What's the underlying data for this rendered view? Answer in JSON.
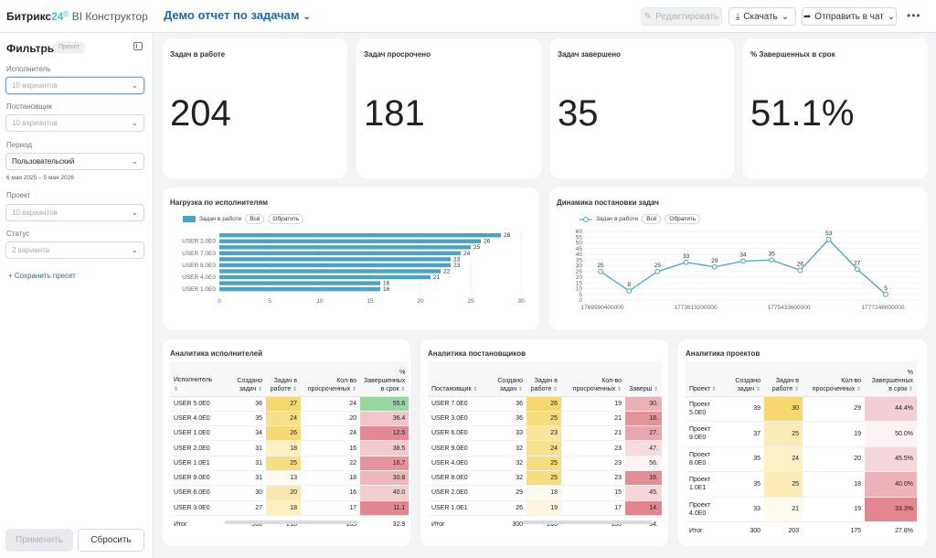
{
  "header": {
    "brand_name": "Битрикс",
    "brand_num": "24",
    "brand_reg": "©",
    "brand_module": "BI Конструктор",
    "report_title": "Демо отчет по задачам",
    "edit_label": "Редактировать",
    "download_label": "Скачать",
    "send_label": "Отправить в чат",
    "more_label": "•••"
  },
  "sidebar": {
    "title": "Фильтры",
    "preset_badge": "Пресет",
    "filters": [
      {
        "label": "Исполнитель",
        "value": "10 вариантов"
      },
      {
        "label": "Постановщик",
        "value": "10 вариантов"
      },
      {
        "label": "Период",
        "value": "Пользовательский"
      },
      {
        "label": "Проект",
        "value": "10 вариантов"
      },
      {
        "label": "Статус",
        "value": "2 варианта"
      }
    ],
    "date_range": "6 мая 2025 – 5 мая 2026",
    "save_preset": "+ Сохранить пресет",
    "apply_label": "Применить",
    "reset_label": "Сбросить"
  },
  "kpis": [
    {
      "title": "Задач в работе",
      "value": "204"
    },
    {
      "title": "Задач просрочено",
      "value": "181"
    },
    {
      "title": "Задач завершено",
      "value": "35"
    },
    {
      "title": "% Завершенных в срок",
      "value": "51.1%"
    }
  ],
  "chart_data": [
    {
      "type": "bar",
      "orientation": "horizontal",
      "title": "Нагрузка по исполнителям",
      "legend_label": "Задач в работе",
      "legend_all": "Всё",
      "legend_invert": "Обратить",
      "color": "#4ba3c3",
      "category_labels_visible": [
        "USER 2.0E0",
        "USER 7.0E0",
        "USER 8.0E0",
        "USER 4.0E0",
        "USER 1.0E0"
      ],
      "values": [
        28,
        26,
        25,
        24,
        23,
        23,
        22,
        21,
        16,
        16
      ],
      "xlim": [
        0,
        30
      ],
      "xticks": [
        "0",
        "5",
        "10",
        "15",
        "20",
        "25",
        "30"
      ],
      "grid": true,
      "legend_position": "top-left"
    },
    {
      "type": "line",
      "title": "Динамика постановки задач",
      "legend_label": "Задач в работе",
      "legend_all": "Всё",
      "legend_invert": "Обратить",
      "color": "#4ba3c3",
      "values": [
        25,
        8,
        25,
        33,
        29,
        34,
        35,
        26,
        53,
        27,
        5
      ],
      "ylim": [
        0,
        60
      ],
      "yticks": [
        "0",
        "5",
        "10",
        "15",
        "20",
        "25",
        "30",
        "35",
        "40",
        "45",
        "50",
        "55",
        "60"
      ],
      "xticks": [
        "1769990400000",
        "1773619200000",
        "1775433600000",
        "1777248000000"
      ],
      "grid": true,
      "legend_position": "top-left"
    }
  ],
  "tables": {
    "performers": {
      "title": "Аналитика исполнителей",
      "headers": [
        "Исполнитель",
        "Создано задач",
        "Задач в работе",
        "Кол-во просроченных",
        "% Завершенных в срок"
      ],
      "rows": [
        [
          "USER 5.0E0",
          "36",
          "27",
          "24",
          "55.6"
        ],
        [
          "USER 4.0E0",
          "35",
          "24",
          "20",
          "36.4"
        ],
        [
          "USER 1.0E0",
          "34",
          "26",
          "24",
          "12.5"
        ],
        [
          "USER 2.0E0",
          "31",
          "18",
          "16",
          "38.5"
        ],
        [
          "USER 1.0E1",
          "31",
          "25",
          "22",
          "16.7"
        ],
        [
          "USER 9.0E0",
          "31",
          "13",
          "18",
          "30.8"
        ],
        [
          "USER 6.0E0",
          "30",
          "20",
          "16",
          "40.0"
        ],
        [
          "USER 3.0E0",
          "27",
          "18",
          "17",
          "11.1"
        ]
      ],
      "total": [
        "Итог",
        "300",
        "218",
        "185",
        "32.9"
      ]
    },
    "creators": {
      "title": "Аналитика постановщиков",
      "headers": [
        "Постановщик",
        "Создано задач",
        "Задач в работе",
        "Кол-во просроченных",
        "Заверш"
      ],
      "rows": [
        [
          "USER 7.0E0",
          "36",
          "26",
          "19",
          "30."
        ],
        [
          "USER 3.0E0",
          "36",
          "25",
          "21",
          "18."
        ],
        [
          "USER 6.0E0",
          "33",
          "23",
          "21",
          "27."
        ],
        [
          "USER 9.0E0",
          "32",
          "24",
          "23",
          "47."
        ],
        [
          "USER 4.0E0",
          "32",
          "25",
          "23",
          "56."
        ],
        [
          "USER 8.0E0",
          "32",
          "25",
          "23",
          "16."
        ],
        [
          "USER 2.0E0",
          "29",
          "18",
          "15",
          "45."
        ],
        [
          "USER 1.0E1",
          "26",
          "19",
          "17",
          "14."
        ]
      ],
      "total": [
        "Итог",
        "300",
        "208",
        "180",
        "34."
      ]
    },
    "projects": {
      "title": "Аналитика проектов",
      "headers": [
        "Проект",
        "Создано задач",
        "Задач в работе",
        "Кол-во просроченных",
        "% Завершенных в срок"
      ],
      "rows": [
        [
          "Проект 5.0E0",
          "39",
          "30",
          "29",
          "44.4%"
        ],
        [
          "Проект 9.0E0",
          "37",
          "25",
          "19",
          "50.0%"
        ],
        [
          "Проект 8.0E0",
          "35",
          "24",
          "20",
          "45.5%"
        ],
        [
          "Проект 1.0E1",
          "35",
          "25",
          "18",
          "40.0%"
        ],
        [
          "Проект 4.0E0",
          "33",
          "21",
          "19",
          "33.3%"
        ]
      ],
      "total": [
        "Итог",
        "300",
        "203",
        "175",
        "27.8%"
      ]
    }
  }
}
